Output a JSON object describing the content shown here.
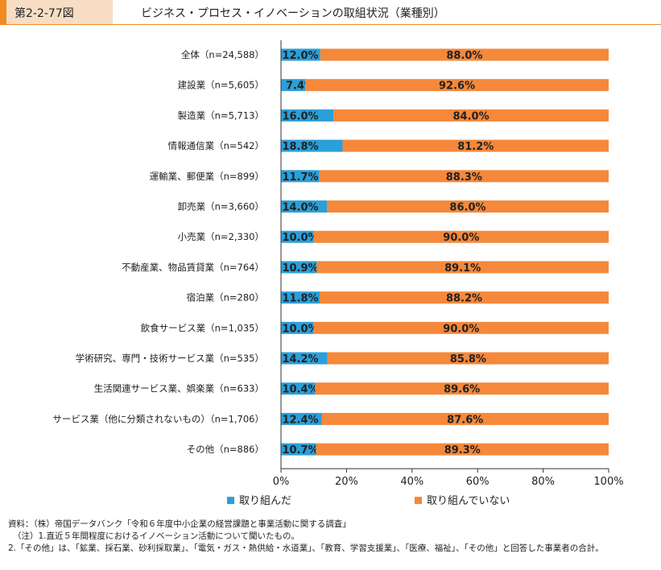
{
  "header": {
    "figure_label": "第2-2-77図",
    "title": "ビジネス・プロセス・イノベーションの取組状況（業種別）"
  },
  "colors": {
    "accent": "#f18a21",
    "label_bg": "#f6ddc4",
    "series_done": "#2b9fd9",
    "series_not": "#f5883a"
  },
  "chart_data": {
    "type": "bar",
    "orientation": "horizontal",
    "stacked": true,
    "categories": [
      "全体（n=24,588）",
      "建設業（n=5,605）",
      "製造業（n=5,713）",
      "情報通信業（n=542）",
      "運輸業、郵便業（n=899）",
      "卸売業（n=3,660）",
      "小売業（n=2,330）",
      "不動産業、物品賃貸業（n=764）",
      "宿泊業（n=280）",
      "飲食サービス業（n=1,035）",
      "学術研究、専門・技術サービス業（n=535）",
      "生活関連サービス業、娯楽業（n=633）",
      "サービス業（他に分類されないもの）（n=1,706）",
      "その他（n=886）"
    ],
    "series": [
      {
        "name": "取り組んだ",
        "color": "#2b9fd9",
        "values": [
          12.0,
          7.4,
          16.0,
          18.8,
          11.7,
          14.0,
          10.0,
          10.9,
          11.8,
          10.0,
          14.2,
          10.4,
          12.4,
          10.7
        ],
        "labels": [
          "12.0%",
          "7.4%",
          "16.0%",
          "18.8%",
          "11.7%",
          "14.0%",
          "10.0%",
          "10.9%",
          "11.8%",
          "10.0%",
          "14.2%",
          "10.4%",
          "12.4%",
          "10.7%"
        ]
      },
      {
        "name": "取り組んでいない",
        "color": "#f5883a",
        "values": [
          88.0,
          92.6,
          84.0,
          81.2,
          88.3,
          86.0,
          90.0,
          89.1,
          88.2,
          90.0,
          85.8,
          89.6,
          87.6,
          89.3
        ],
        "labels": [
          "88.0%",
          "92.6%",
          "84.0%",
          "81.2%",
          "88.3%",
          "86.0%",
          "90.0%",
          "89.1%",
          "88.2%",
          "90.0%",
          "85.8%",
          "89.6%",
          "87.6%",
          "89.3%"
        ]
      }
    ],
    "xlim": [
      0,
      100
    ],
    "x_ticks": [
      0,
      20,
      40,
      60,
      80,
      100
    ],
    "x_tick_labels": [
      "0%",
      "20%",
      "40%",
      "60%",
      "80%",
      "100%"
    ],
    "legend_position": "bottom",
    "grid": false
  },
  "notes": {
    "source": "資料：（株）帝国データバンク「令和６年度中小企業の経営課題と事業活動に関する調査」",
    "note1": "（注）1.直近５年間程度におけるイノベーション活動について聞いたもの。",
    "note2": "2.「その他」は、「鉱業、採石業、砂利採取業」、「電気・ガス・熱供給・水道業」、「教育、学習支援業」、「医療、福祉」、「その他」と回答した事業者の合計。"
  }
}
